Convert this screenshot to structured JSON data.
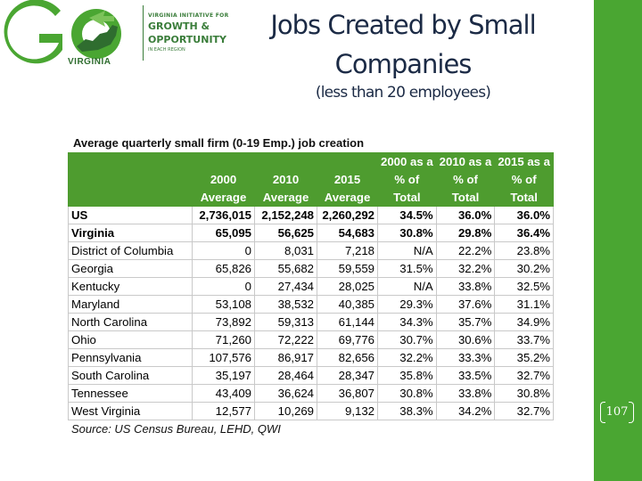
{
  "logo": {
    "mark": "GO",
    "state": "VIRGINIA",
    "line1": "VIRGINIA INITIATIVE FOR",
    "line2": "GROWTH &",
    "line3": "OPPORTUNITY",
    "line4": "IN EACH REGION",
    "colors": {
      "green": "#4aa632",
      "dark_green": "#2f6d2f"
    },
    "icon": "virginia-map-icon"
  },
  "slide": {
    "title_line1": "Jobs Created by Small",
    "title_line2": "Companies",
    "subtitle": "(less than 20 employees)",
    "page_number": "107"
  },
  "table": {
    "caption": "Average quarterly small firm (0-19 Emp.) job creation",
    "header_row1": [
      "",
      "",
      "",
      "",
      "2000 as a",
      "2010 as a",
      "2015 as a"
    ],
    "header_row2": [
      "",
      "2000",
      "2010",
      "2015",
      "% of",
      "% of",
      "% of"
    ],
    "header_row3": [
      "",
      "Average",
      "Average",
      "Average",
      "Total",
      "Total",
      "Total"
    ],
    "rows": [
      {
        "state": "US",
        "a2000": "2,736,015",
        "a2010": "2,152,248",
        "a2015": "2,260,292",
        "p2000": "34.5%",
        "p2010": "36.0%",
        "p2015": "36.0%",
        "bold": true
      },
      {
        "state": "Virginia",
        "a2000": "65,095",
        "a2010": "56,625",
        "a2015": "54,683",
        "p2000": "30.8%",
        "p2010": "29.8%",
        "p2015": "36.4%",
        "bold": true
      },
      {
        "state": "District of Columbia",
        "a2000": "0",
        "a2010": "8,031",
        "a2015": "7,218",
        "p2000": "N/A",
        "p2010": "22.2%",
        "p2015": "23.8%",
        "bold": false
      },
      {
        "state": "Georgia",
        "a2000": "65,826",
        "a2010": "55,682",
        "a2015": "59,559",
        "p2000": "31.5%",
        "p2010": "32.2%",
        "p2015": "30.2%",
        "bold": false
      },
      {
        "state": "Kentucky",
        "a2000": "0",
        "a2010": "27,434",
        "a2015": "28,025",
        "p2000": "N/A",
        "p2010": "33.8%",
        "p2015": "32.5%",
        "bold": false
      },
      {
        "state": "Maryland",
        "a2000": "53,108",
        "a2010": "38,532",
        "a2015": "40,385",
        "p2000": "29.3%",
        "p2010": "37.6%",
        "p2015": "31.1%",
        "bold": false
      },
      {
        "state": "North Carolina",
        "a2000": "73,892",
        "a2010": "59,313",
        "a2015": "61,144",
        "p2000": "34.3%",
        "p2010": "35.7%",
        "p2015": "34.9%",
        "bold": false
      },
      {
        "state": "Ohio",
        "a2000": "71,260",
        "a2010": "72,222",
        "a2015": "69,776",
        "p2000": "30.7%",
        "p2010": "30.6%",
        "p2015": "33.7%",
        "bold": false
      },
      {
        "state": "Pennsylvania",
        "a2000": "107,576",
        "a2010": "86,917",
        "a2015": "82,656",
        "p2000": "32.2%",
        "p2010": "33.3%",
        "p2015": "35.2%",
        "bold": false
      },
      {
        "state": "South Carolina",
        "a2000": "35,197",
        "a2010": "28,464",
        "a2015": "28,347",
        "p2000": "35.8%",
        "p2010": "33.5%",
        "p2015": "32.7%",
        "bold": false
      },
      {
        "state": "Tennessee",
        "a2000": "43,409",
        "a2010": "36,624",
        "a2015": "36,807",
        "p2000": "30.8%",
        "p2010": "33.8%",
        "p2015": "30.8%",
        "bold": false
      },
      {
        "state": "West Virginia",
        "a2000": "12,577",
        "a2010": "10,269",
        "a2015": "9,132",
        "p2000": "38.3%",
        "p2010": "34.2%",
        "p2015": "32.7%",
        "bold": false
      }
    ],
    "source": "Source: US Census Bureau, LEHD, QWI",
    "colors": {
      "header_bg": "#4e9c2f",
      "header_text": "#ffffff"
    }
  }
}
